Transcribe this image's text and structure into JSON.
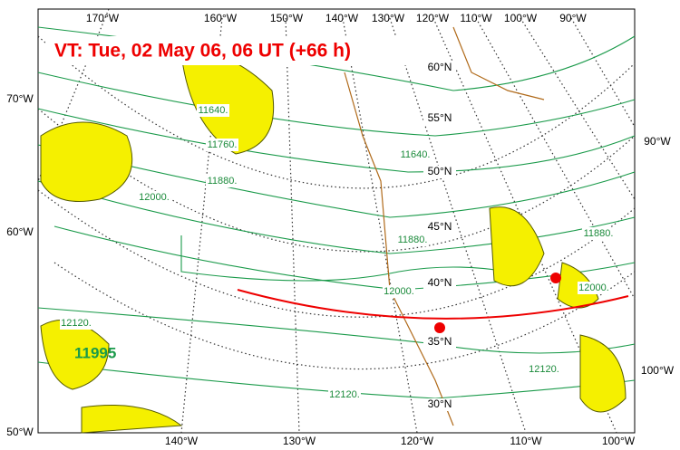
{
  "map": {
    "title": "VT:  Tue, 02 May 06, 06 UT (+66 h)",
    "top_labels": [
      "170°W",
      "160°W",
      "150°W",
      "140°W",
      "130°W",
      "120°W",
      "110°W",
      "100°W",
      "90°W"
    ],
    "bottom_labels": [
      "140°W",
      "130°W",
      "120°W",
      "110°W",
      "100°W"
    ],
    "left_labels": [
      "70°W",
      "60°W",
      "50°W"
    ],
    "right_labels": [
      "90°W",
      "100°W"
    ],
    "lat_labels": [
      "60°N",
      "55°N",
      "50°N",
      "45°N",
      "40°N",
      "35°N",
      "30°N"
    ],
    "contour_labels": [
      "11640.",
      "11760.",
      "11880.",
      "12000.",
      "11640.",
      "11880.",
      "11880.",
      "12000.",
      "12000.",
      "12120.",
      "12120.",
      "12120."
    ],
    "center_label": "11995"
  }
}
